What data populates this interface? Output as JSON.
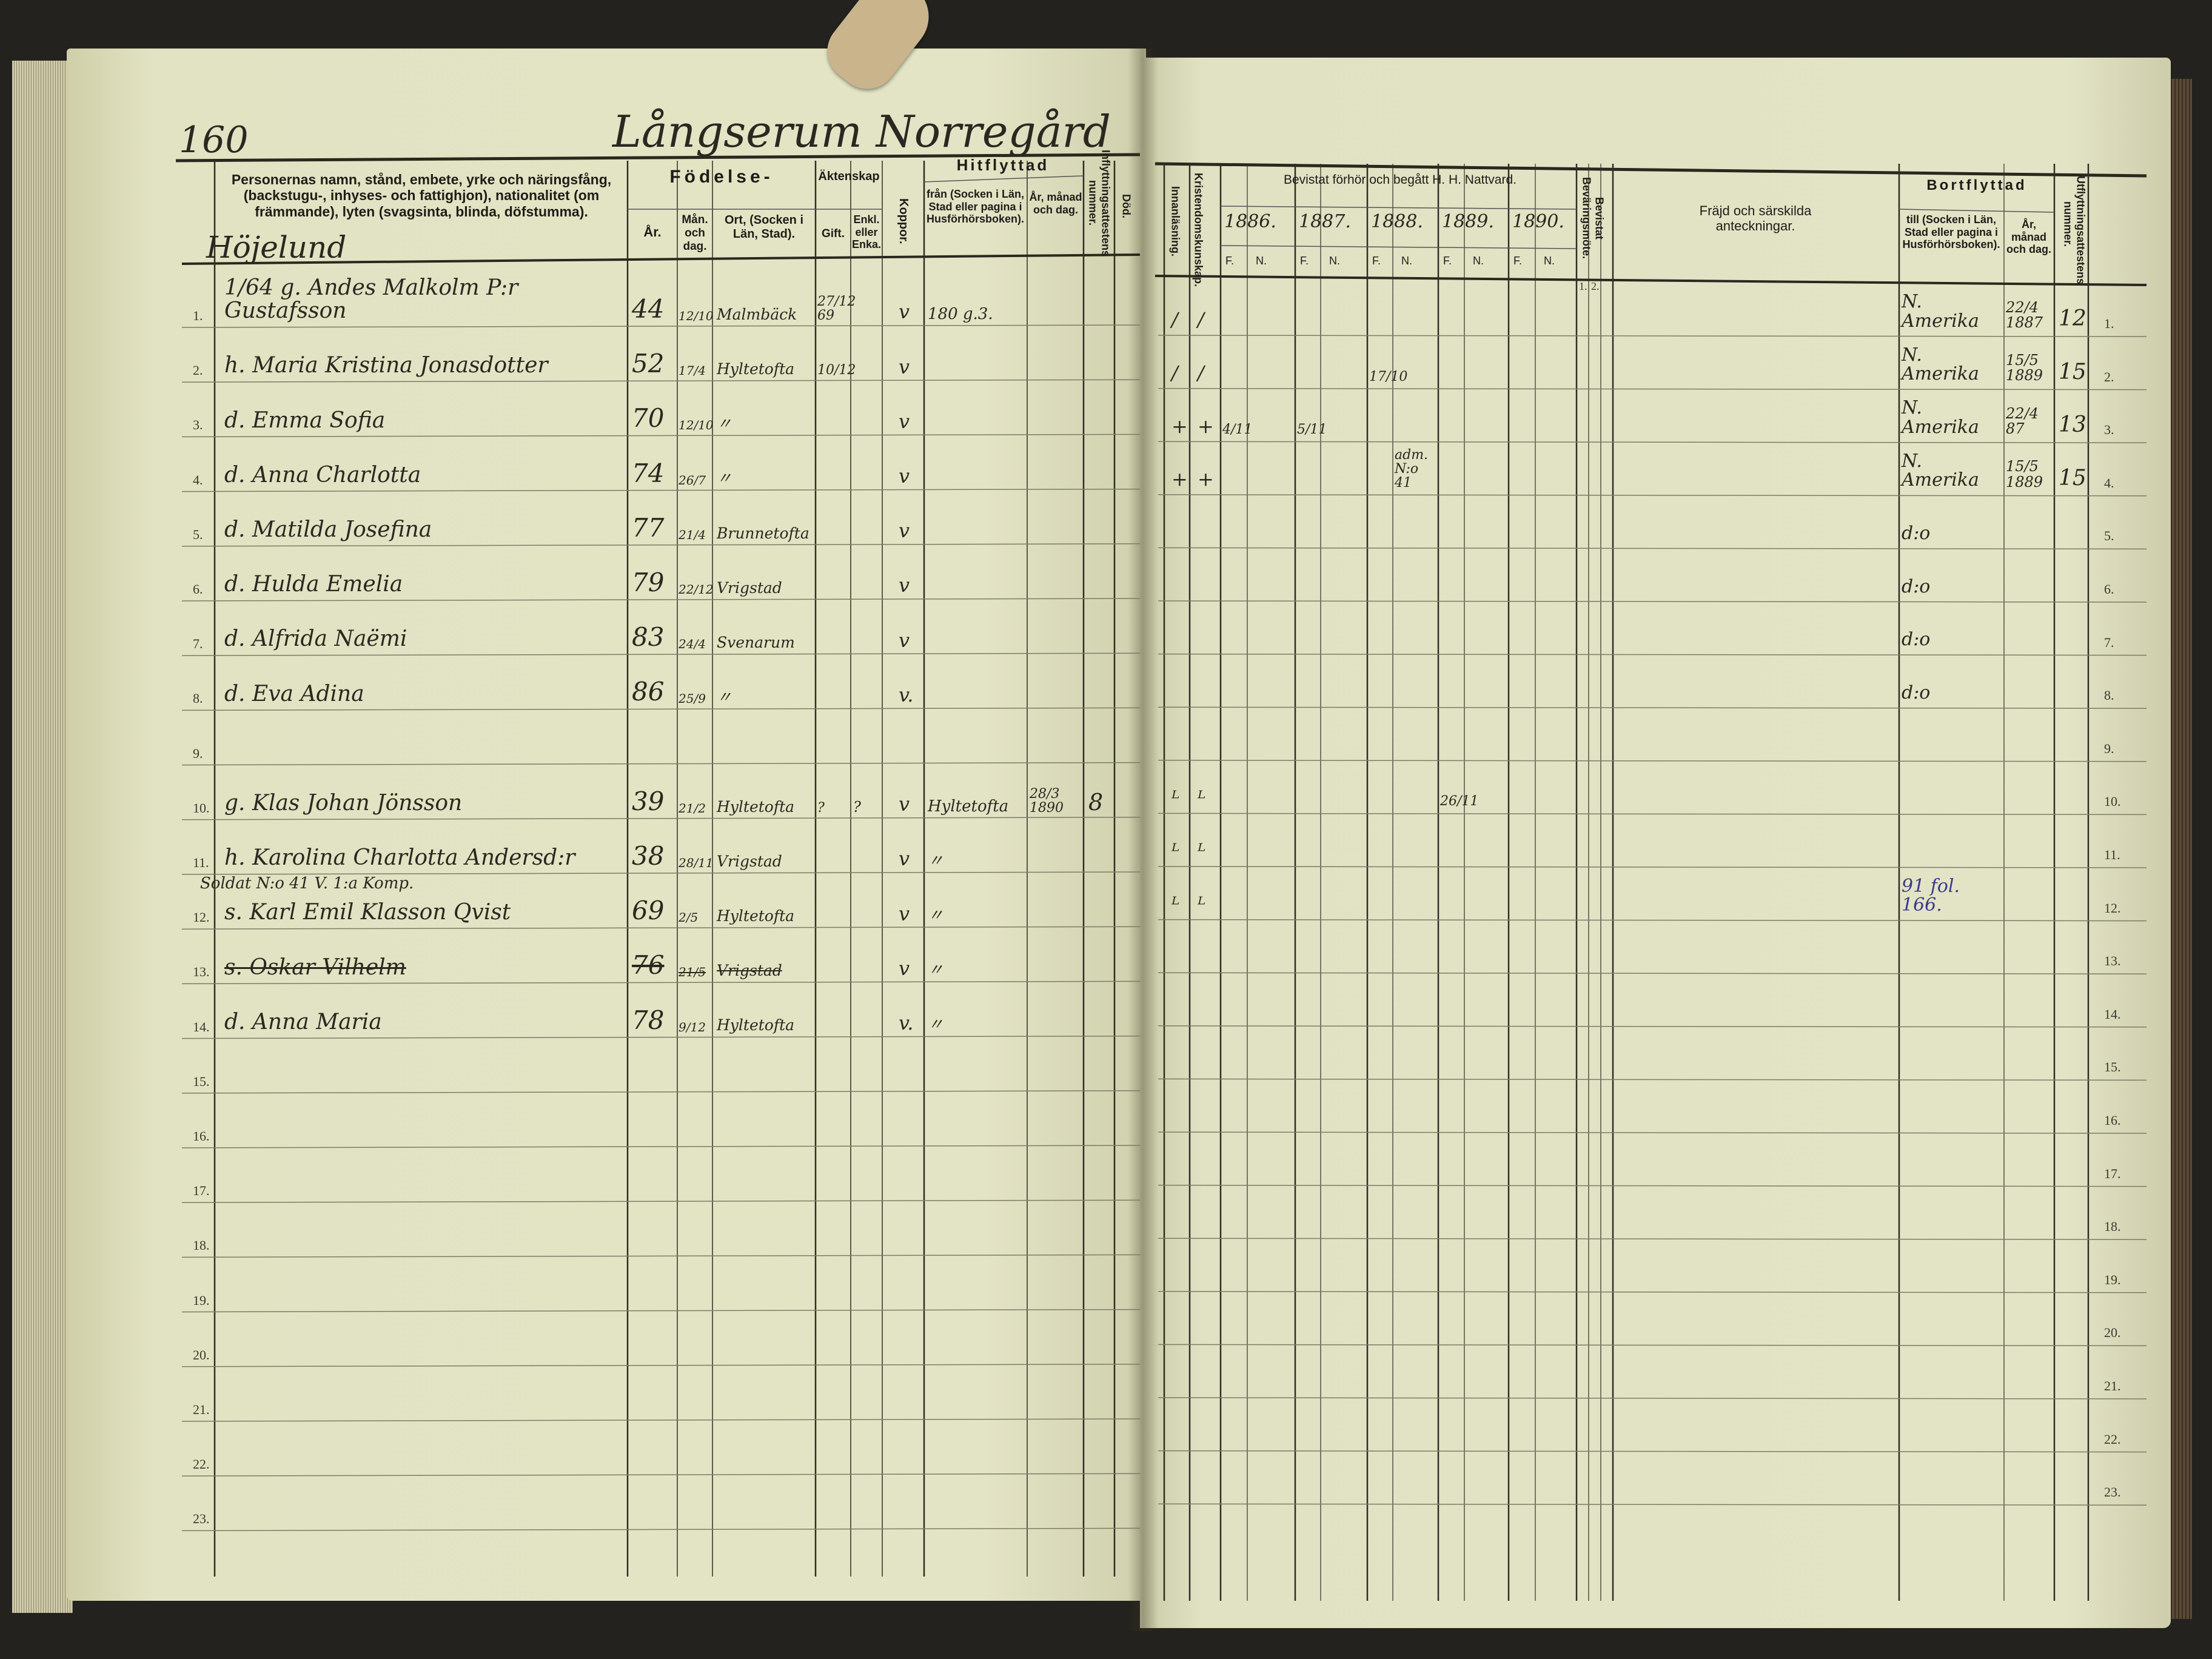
{
  "left_page": {
    "page_number": "160",
    "farm_title": "Långserum Norregård",
    "subheading": "Höjelund",
    "headers": {
      "names": "Personernas namn, stånd, embete, yrke och näringsfång, (backstugu-, inhyses- och fattighjon), nationalitet (om främmande), lyten (svagsinta, blinda, döfstumma).",
      "fodelse": "Födelse-",
      "ar": "År.",
      "man_dag": "Mån. och dag.",
      "ort": "Ort, (Socken i Län, Stad).",
      "aktenskap": "Äktenskap",
      "gift": "Gift.",
      "enka": "Enkl. eller Enka.",
      "koppor": "Koppor.",
      "hitflyttad": "Hitflyttad",
      "fran": "från (Socken i Län, Stad eller pagina i Husförhörsboken).",
      "ar_manad": "År, månad och dag.",
      "inflyttning_nr": "Inflyttningsattestens nummer.",
      "dod": "Död."
    },
    "row_numbers": [
      "1.",
      "2.",
      "3.",
      "4.",
      "5.",
      "6.",
      "7.",
      "8.",
      "9.",
      "10.",
      "11.",
      "12.",
      "13.",
      "14.",
      "15.",
      "16.",
      "17.",
      "18.",
      "19.",
      "20.",
      "21.",
      "22.",
      "23."
    ],
    "rows": [
      {
        "name": "1/64 g. Andes Malkolm P:r Gustafsson",
        "year": "44",
        "md": "12/10",
        "ort": "Malmbäck",
        "gift": "27/12 69",
        "enka": "",
        "koppor": "v",
        "fran": "180 g.3.",
        "fran_date": "",
        "infl_nr": ""
      },
      {
        "name": "h. Maria Kristina Jonasdotter",
        "year": "52",
        "md": "17/4",
        "ort": "Hyltetofta",
        "gift": "10/12",
        "enka": "",
        "koppor": "v",
        "fran": "",
        "fran_date": "",
        "infl_nr": ""
      },
      {
        "name": "d. Emma Sofia",
        "year": "70",
        "md": "12/10",
        "ort": "〃",
        "gift": "",
        "enka": "",
        "koppor": "v",
        "fran": "",
        "fran_date": "",
        "infl_nr": ""
      },
      {
        "name": "d. Anna Charlotta",
        "year": "74",
        "md": "26/7",
        "ort": "〃",
        "gift": "",
        "enka": "",
        "koppor": "v",
        "fran": "",
        "fran_date": "",
        "infl_nr": ""
      },
      {
        "name": "d. Matilda Josefina",
        "year": "77",
        "md": "21/4",
        "ort": "Brunnetofta",
        "gift": "",
        "enka": "",
        "koppor": "v",
        "fran": "",
        "fran_date": "",
        "infl_nr": ""
      },
      {
        "name": "d. Hulda Emelia",
        "year": "79",
        "md": "22/12",
        "ort": "Vrigstad",
        "gift": "",
        "enka": "",
        "koppor": "v",
        "fran": "",
        "fran_date": "",
        "infl_nr": ""
      },
      {
        "name": "d. Alfrida Naëmi",
        "year": "83",
        "md": "24/4",
        "ort": "Svenarum",
        "gift": "",
        "enka": "",
        "koppor": "v",
        "fran": "",
        "fran_date": "",
        "infl_nr": ""
      },
      {
        "name": "d. Eva Adina",
        "year": "86",
        "md": "25/9",
        "ort": "〃",
        "gift": "",
        "enka": "",
        "koppor": "v.",
        "fran": "",
        "fran_date": "",
        "infl_nr": ""
      },
      {
        "name": "",
        "year": "",
        "md": "",
        "ort": "",
        "gift": "",
        "enka": "",
        "koppor": "",
        "fran": "",
        "fran_date": "",
        "infl_nr": ""
      },
      {
        "name": "g. Klas Johan Jönsson",
        "year": "39",
        "md": "21/2",
        "ort": "Hyltetofta",
        "gift": "?",
        "enka": "?",
        "koppor": "v",
        "fran": "Hyltetofta",
        "fran_date": "28/3 1890",
        "infl_nr": "8"
      },
      {
        "name": "h. Karolina Charlotta Andersd:r",
        "year": "38",
        "md": "28/11",
        "ort": "Vrigstad",
        "gift": "",
        "enka": "",
        "koppor": "v",
        "fran": "〃",
        "fran_date": "",
        "infl_nr": ""
      },
      {
        "name": "s. Karl Emil Klasson Qvist",
        "year": "69",
        "md": "2/5",
        "ort": "Hyltetofta",
        "gift": "",
        "enka": "",
        "koppor": "v",
        "fran": "〃",
        "fran_date": "",
        "infl_nr": ""
      },
      {
        "name": "s. Oskar Vilhelm",
        "year": "76",
        "md": "21/5",
        "ort": "Vrigstad",
        "gift": "",
        "enka": "",
        "koppor": "v",
        "fran": "〃",
        "fran_date": "",
        "infl_nr": ""
      },
      {
        "name": "d. Anna Maria",
        "year": "78",
        "md": "9/12",
        "ort": "Hyltetofta",
        "gift": "",
        "enka": "",
        "koppor": "v.",
        "fran": "〃",
        "fran_date": "",
        "infl_nr": ""
      }
    ],
    "annotation_row12": "Soldat N:o 41 V. 1:a Komp."
  },
  "right_page": {
    "headers": {
      "innanlasning": "Innanläsning.",
      "kristendom": "Kristendomskunskap.",
      "forhor": "Bevistat förhör och begått H. H. Nattvard.",
      "years": [
        "1886.",
        "1887.",
        "1888.",
        "1889.",
        "1890."
      ],
      "f": "F.",
      "n": "N.",
      "bevaring": "Bevistat Beväringsmöte.",
      "bevaring_sub": [
        "1.",
        "2."
      ],
      "fragd": "Fräjd och särskilda anteckningar.",
      "bortflyttad": "Bortflyttad",
      "till": "till (Socken i Län, Stad eller pagina i Husförhörsboken).",
      "ar_manad": "År, månad och dag.",
      "utflyttning_nr": "Utflyttningsattestens nummer."
    },
    "row_numbers": [
      "1.",
      "2.",
      "3.",
      "4.",
      "5.",
      "6.",
      "7.",
      "8.",
      "9.",
      "10.",
      "11.",
      "12.",
      "13.",
      "14.",
      "15.",
      "16.",
      "17.",
      "18.",
      "19.",
      "20.",
      "21.",
      "22.",
      "23."
    ],
    "rows": [
      {
        "innanl": "/",
        "krist": "/",
        "y1886f": "",
        "y1886n": "",
        "y1887f": "",
        "y1888f": "",
        "y1888n": "",
        "y1889f": "",
        "bort": "N. Amerika",
        "bort_date": "22/4 1887",
        "utfl_nr": "12"
      },
      {
        "innanl": "/",
        "krist": "/",
        "y1886f": "",
        "y1886n": "",
        "y1887f": "",
        "y1888f": "17/10",
        "y1888n": "",
        "y1889f": "",
        "bort": "N. Amerika",
        "bort_date": "15/5 1889",
        "utfl_nr": "15"
      },
      {
        "innanl": "+",
        "krist": "+",
        "y1886f": "4/11",
        "y1886n": "",
        "y1887f": "5/11",
        "y1888f": "",
        "y1888n": "",
        "y1889f": "",
        "bort": "N. Amerika",
        "bort_date": "22/4 87",
        "utfl_nr": "13"
      },
      {
        "innanl": "+",
        "krist": "+",
        "y1886f": "",
        "y1886n": "",
        "y1887f": "",
        "y1888f": "",
        "y1888n": "adm. N:o 41",
        "y1889f": "",
        "bort": "N. Amerika",
        "bort_date": "15/5 1889",
        "utfl_nr": "15"
      },
      {
        "innanl": "",
        "krist": "",
        "y1886f": "",
        "y1886n": "",
        "y1887f": "",
        "y1888f": "",
        "y1888n": "",
        "y1889f": "",
        "bort": "d:o",
        "bort_date": "",
        "utfl_nr": ""
      },
      {
        "innanl": "",
        "krist": "",
        "y1886f": "",
        "y1886n": "",
        "y1887f": "",
        "y1888f": "",
        "y1888n": "",
        "y1889f": "",
        "bort": "d:o",
        "bort_date": "",
        "utfl_nr": ""
      },
      {
        "innanl": "",
        "krist": "",
        "y1886f": "",
        "y1886n": "",
        "y1887f": "",
        "y1888f": "",
        "y1888n": "",
        "y1889f": "",
        "bort": "d:o",
        "bort_date": "",
        "utfl_nr": ""
      },
      {
        "innanl": "",
        "krist": "",
        "y1886f": "",
        "y1886n": "",
        "y1887f": "",
        "y1888f": "",
        "y1888n": "",
        "y1889f": "",
        "bort": "d:o",
        "bort_date": "",
        "utfl_nr": ""
      },
      {
        "innanl": "",
        "krist": "",
        "y1886f": "",
        "y1886n": "",
        "y1887f": "",
        "y1888f": "",
        "y1888n": "",
        "y1889f": "",
        "bort": "",
        "bort_date": "",
        "utfl_nr": ""
      },
      {
        "innanl": "ᴸ",
        "krist": "ᴸ",
        "y1886f": "",
        "y1886n": "",
        "y1887f": "",
        "y1888f": "",
        "y1888n": "",
        "y1889f": "26/11",
        "bort": "",
        "bort_date": "",
        "utfl_nr": ""
      },
      {
        "innanl": "ᴸ",
        "krist": "ᴸ",
        "y1886f": "",
        "y1886n": "",
        "y1887f": "",
        "y1888f": "",
        "y1888n": "",
        "y1889f": "",
        "bort": "",
        "bort_date": "",
        "utfl_nr": ""
      },
      {
        "innanl": "ᴸ",
        "krist": "ᴸ",
        "y1886f": "",
        "y1886n": "",
        "y1887f": "",
        "y1888f": "",
        "y1888n": "",
        "y1889f": "",
        "bort": "91 fol. 166.",
        "bort_date": "",
        "utfl_nr": ""
      }
    ]
  },
  "colors": {
    "paper": "#e3e4c5",
    "ink": "#2a2820",
    "blue_ink": "#3c3a8a",
    "background": "#23221e"
  }
}
